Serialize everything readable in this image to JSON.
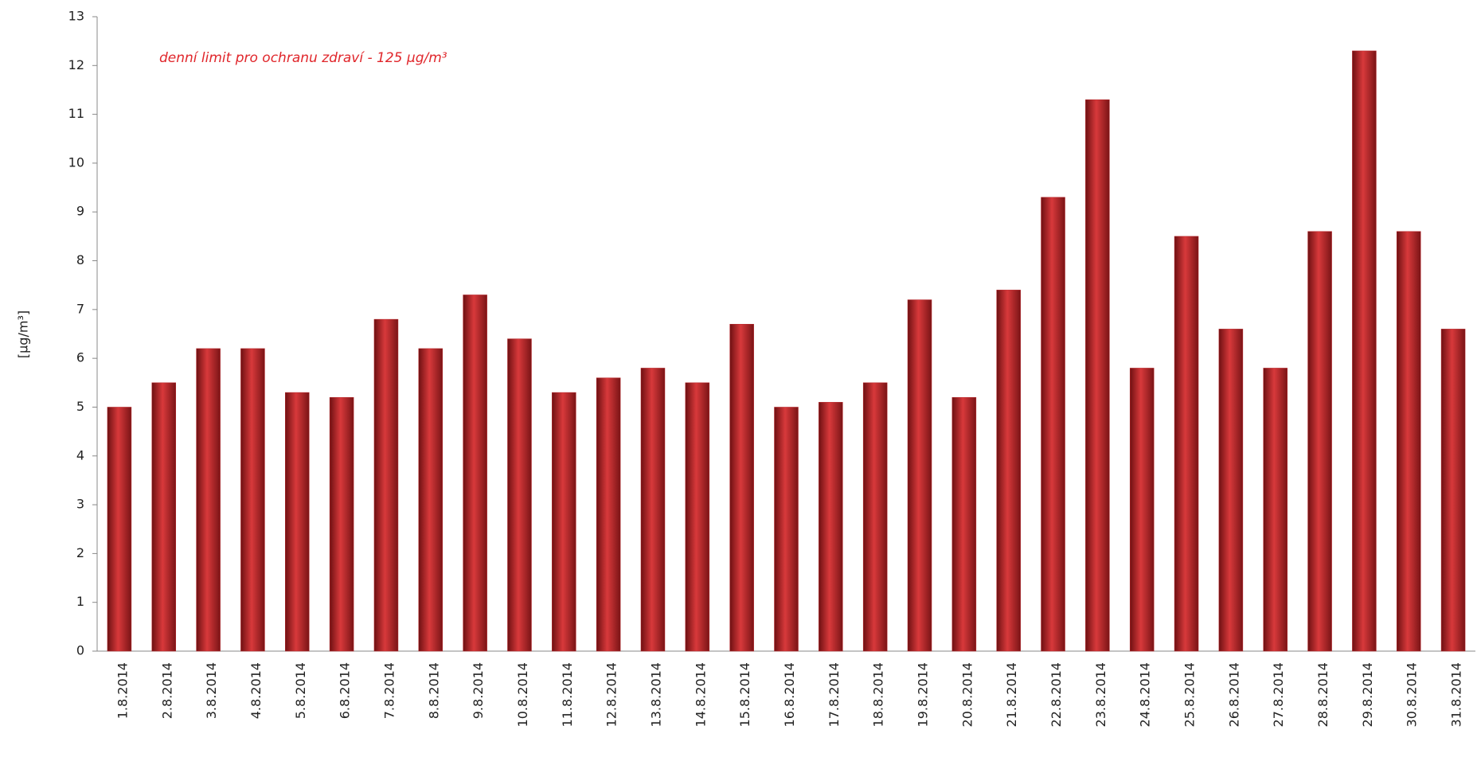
{
  "chart_data": {
    "type": "bar",
    "annotation": "denní limit pro ochranu zdraví - 125 µg/m³",
    "y_label": "[µg/m³]",
    "categories": [
      "1.8.2014",
      "2.8.2014",
      "3.8.2014",
      "4.8.2014",
      "5.8.2014",
      "6.8.2014",
      "7.8.2014",
      "8.8.2014",
      "9.8.2014",
      "10.8.2014",
      "11.8.2014",
      "12.8.2014",
      "13.8.2014",
      "14.8.2014",
      "15.8.2014",
      "16.8.2014",
      "17.8.2014",
      "18.8.2014",
      "19.8.2014",
      "20.8.2014",
      "21.8.2014",
      "22.8.2014",
      "23.8.2014",
      "24.8.2014",
      "25.8.2014",
      "26.8.2014",
      "27.8.2014",
      "28.8.2014",
      "29.8.2014",
      "30.8.2014",
      "31.8.2014"
    ],
    "values": [
      5.0,
      5.5,
      6.2,
      6.2,
      5.3,
      5.2,
      6.8,
      6.2,
      7.3,
      6.4,
      5.3,
      5.6,
      5.8,
      5.5,
      6.7,
      5.0,
      5.1,
      5.5,
      7.2,
      5.2,
      7.4,
      9.3,
      11.3,
      5.8,
      8.5,
      6.6,
      5.8,
      8.6,
      12.3,
      8.6,
      6.6
    ],
    "color": "#b8262a",
    "ylim": [
      0,
      13
    ],
    "yticks": [
      0,
      1,
      2,
      3,
      4,
      5,
      6,
      7,
      8,
      9,
      10,
      11,
      12,
      13
    ],
    "grid": false
  }
}
